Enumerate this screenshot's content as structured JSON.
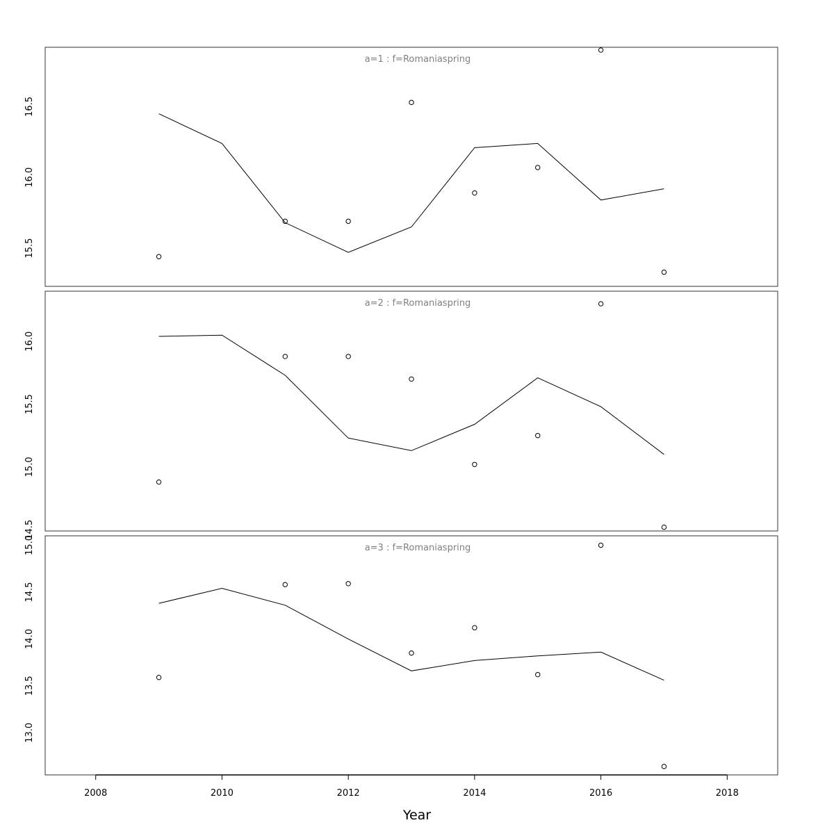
{
  "chart_data": {
    "type": "scatter",
    "xlabel": "Year",
    "x_ticks": [
      2008,
      2010,
      2012,
      2014,
      2016,
      2018
    ],
    "xlim": [
      2007.2,
      2018.8
    ],
    "panels": [
      {
        "title": "a=1  :  f=Romaniaspring",
        "ylim": [
          15.23,
          16.92
        ],
        "y_ticks": [
          "15.5",
          "16.0",
          "16.5"
        ],
        "observed": {
          "x": [
            2009,
            2011,
            2012,
            2013,
            2014,
            2015,
            2016,
            2017
          ],
          "y": [
            15.44,
            15.69,
            15.69,
            16.53,
            15.89,
            16.07,
            16.9,
            15.33
          ]
        },
        "fitted": {
          "x": [
            2009,
            2010,
            2011,
            2012,
            2013,
            2014,
            2015,
            2016,
            2017
          ],
          "y": [
            16.45,
            16.24,
            15.68,
            15.47,
            15.65,
            16.21,
            16.24,
            15.84,
            15.92
          ]
        }
      },
      {
        "title": "a=2  :  f=Romaniaspring",
        "ylim": [
          14.49,
          16.4
        ],
        "y_ticks": [
          "14.5",
          "15.0",
          "15.5",
          "16.0"
        ],
        "observed": {
          "x": [
            2009,
            2011,
            2012,
            2013,
            2014,
            2015,
            2016,
            2017
          ],
          "y": [
            14.88,
            15.88,
            15.88,
            15.7,
            15.02,
            15.25,
            16.3,
            14.52
          ]
        },
        "fitted": {
          "x": [
            2009,
            2010,
            2011,
            2012,
            2013,
            2014,
            2015,
            2016,
            2017
          ],
          "y": [
            16.04,
            16.05,
            15.73,
            15.23,
            15.13,
            15.34,
            15.71,
            15.48,
            15.1
          ]
        }
      },
      {
        "title": "a=3  :  f=Romaniaspring",
        "ylim": [
          12.55,
          15.1
        ],
        "y_ticks": [
          "13.0",
          "13.5",
          "14.0",
          "14.5",
          "15.0"
        ],
        "observed": {
          "x": [
            2009,
            2011,
            2012,
            2013,
            2014,
            2015,
            2016,
            2017
          ],
          "y": [
            13.59,
            14.58,
            14.59,
            13.85,
            14.12,
            13.62,
            15.0,
            12.64
          ]
        },
        "fitted": {
          "x": [
            2009,
            2010,
            2011,
            2012,
            2013,
            2014,
            2015,
            2016,
            2017
          ],
          "y": [
            14.38,
            14.54,
            14.36,
            14.0,
            13.66,
            13.77,
            13.82,
            13.86,
            13.56
          ]
        }
      }
    ]
  }
}
